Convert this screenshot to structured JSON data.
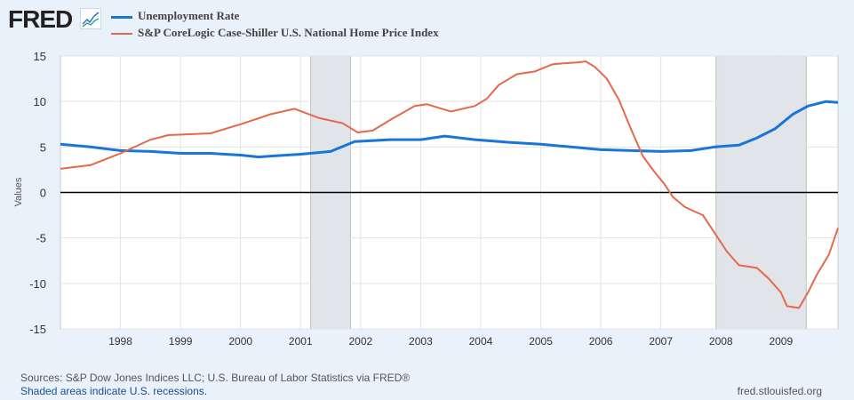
{
  "header": {
    "logo": "FRED",
    "logo_icon": "chart-line-icon"
  },
  "footer": {
    "sources": "Sources: S&P Dow Jones Indices LLC; U.S. Bureau of Labor Statistics via FRED®",
    "recession_note": "Shaded areas indicate U.S. recessions.",
    "site": "fred.stlouisfed.org"
  },
  "chart_data": {
    "type": "line",
    "title": "",
    "xlabel": "",
    "ylabel": "Values",
    "xlim": [
      1997.0,
      2009.95
    ],
    "ylim": [
      -15,
      15
    ],
    "yticks": [
      -15,
      -10,
      -5,
      0,
      5,
      10,
      15
    ],
    "xticks": [
      1998,
      1999,
      2000,
      2001,
      2002,
      2003,
      2004,
      2005,
      2006,
      2007,
      2008,
      2009
    ],
    "grid": true,
    "legend": "top-left",
    "recessions": [
      [
        2001.17,
        2001.83
      ],
      [
        2007.92,
        2009.42
      ]
    ],
    "series": [
      {
        "name": "Unemployment Rate",
        "color": "#1a75d8",
        "x": [
          1997.0,
          1997.5,
          1998.0,
          1998.5,
          1999.0,
          1999.5,
          2000.0,
          2000.3,
          2000.5,
          2001.0,
          2001.5,
          2001.9,
          2002.5,
          2003.0,
          2003.4,
          2003.9,
          2004.5,
          2005.0,
          2005.5,
          2006.0,
          2006.5,
          2007.0,
          2007.5,
          2007.9,
          2008.3,
          2008.6,
          2008.9,
          2009.2,
          2009.45,
          2009.75,
          2009.95
        ],
        "y": [
          5.3,
          5.0,
          4.6,
          4.5,
          4.3,
          4.3,
          4.1,
          3.9,
          4.0,
          4.2,
          4.5,
          5.6,
          5.8,
          5.8,
          6.2,
          5.8,
          5.5,
          5.3,
          5.0,
          4.7,
          4.6,
          4.5,
          4.6,
          5.0,
          5.2,
          6.0,
          7.0,
          8.6,
          9.5,
          10.0,
          9.9
        ]
      },
      {
        "name": "S&P CoreLogic Case-Shiller U.S. National Home Price Index",
        "color": "#e4694c",
        "x": [
          1997.0,
          1997.5,
          1998.0,
          1998.5,
          1998.8,
          1999.5,
          2000.0,
          2000.5,
          2000.9,
          2001.3,
          2001.7,
          2001.95,
          2002.2,
          2002.5,
          2002.9,
          2003.1,
          2003.5,
          2003.9,
          2004.1,
          2004.3,
          2004.6,
          2004.9,
          2005.2,
          2005.6,
          2005.75,
          2005.9,
          2006.1,
          2006.3,
          2006.5,
          2006.7,
          2006.9,
          2007.05,
          2007.2,
          2007.4,
          2007.7,
          2007.9,
          2008.1,
          2008.3,
          2008.6,
          2008.8,
          2009.0,
          2009.1,
          2009.3,
          2009.45,
          2009.6,
          2009.8,
          2009.95
        ],
        "y": [
          2.6,
          3.0,
          4.3,
          5.8,
          6.3,
          6.5,
          7.5,
          8.6,
          9.2,
          8.2,
          7.6,
          6.6,
          6.8,
          8.0,
          9.5,
          9.7,
          8.9,
          9.5,
          10.3,
          11.8,
          13.0,
          13.3,
          14.1,
          14.3,
          14.4,
          13.8,
          12.5,
          10.2,
          7.0,
          4.0,
          2.2,
          1.0,
          -0.5,
          -1.6,
          -2.5,
          -4.5,
          -6.5,
          -8.0,
          -8.3,
          -9.5,
          -11.0,
          -12.5,
          -12.7,
          -11.0,
          -9.0,
          -6.8,
          -3.9
        ]
      }
    ]
  }
}
